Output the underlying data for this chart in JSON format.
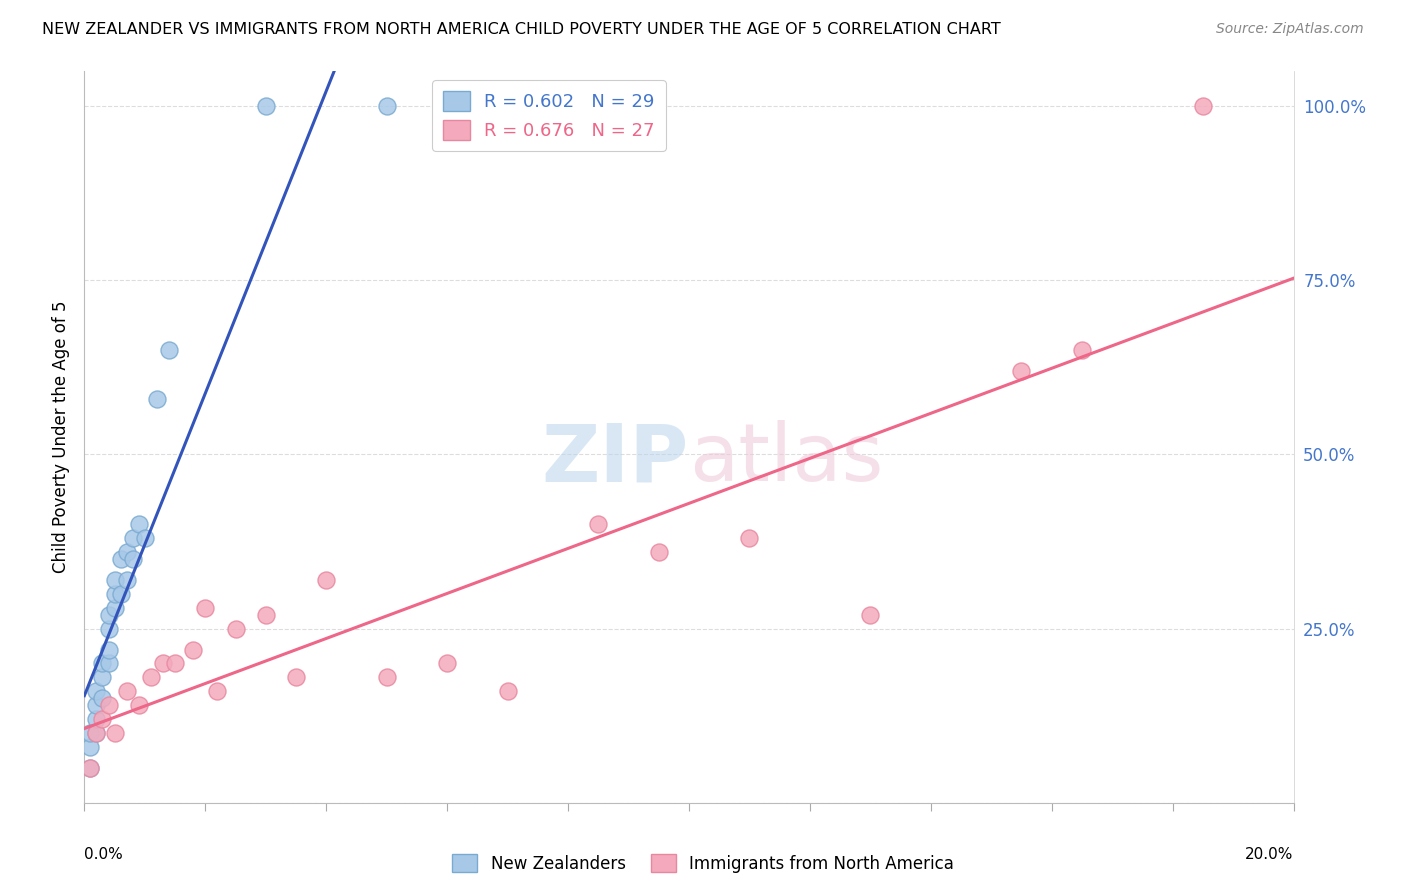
{
  "title": "NEW ZEALANDER VS IMMIGRANTS FROM NORTH AMERICA CHILD POVERTY UNDER THE AGE OF 5 CORRELATION CHART",
  "source": "Source: ZipAtlas.com",
  "ylabel": "Child Poverty Under the Age of 5",
  "R_blue": 0.602,
  "N_blue": 29,
  "R_pink": 0.676,
  "N_pink": 27,
  "legend_label_blue": "New Zealanders",
  "legend_label_pink": "Immigrants from North America",
  "blue_scatter_color": "#A8C8E8",
  "blue_scatter_edge": "#7AAAD0",
  "pink_scatter_color": "#F4AABC",
  "pink_scatter_edge": "#E888A0",
  "blue_line_color": "#3355BB",
  "pink_line_color": "#EE6688",
  "blue_text_color": "#4477CC",
  "pink_text_color": "#EE6688",
  "grid_color": "#DDDDDD",
  "background_color": "#FFFFFF",
  "blue_points_x": [
    0.001,
    0.001,
    0.001,
    0.002,
    0.002,
    0.002,
    0.002,
    0.003,
    0.003,
    0.003,
    0.004,
    0.004,
    0.004,
    0.004,
    0.005,
    0.005,
    0.005,
    0.006,
    0.006,
    0.007,
    0.007,
    0.008,
    0.008,
    0.009,
    0.01,
    0.012,
    0.014,
    0.03,
    0.05
  ],
  "blue_points_y": [
    0.05,
    0.08,
    0.1,
    0.1,
    0.12,
    0.14,
    0.16,
    0.15,
    0.18,
    0.2,
    0.2,
    0.22,
    0.25,
    0.27,
    0.28,
    0.3,
    0.32,
    0.3,
    0.35,
    0.32,
    0.36,
    0.35,
    0.38,
    0.4,
    0.38,
    0.58,
    0.65,
    1.0,
    1.0
  ],
  "pink_points_x": [
    0.001,
    0.002,
    0.003,
    0.004,
    0.005,
    0.007,
    0.009,
    0.011,
    0.013,
    0.015,
    0.018,
    0.02,
    0.022,
    0.025,
    0.03,
    0.035,
    0.04,
    0.05,
    0.06,
    0.07,
    0.085,
    0.095,
    0.11,
    0.13,
    0.155,
    0.165,
    0.185
  ],
  "pink_points_y": [
    0.05,
    0.1,
    0.12,
    0.14,
    0.1,
    0.16,
    0.14,
    0.18,
    0.2,
    0.2,
    0.22,
    0.28,
    0.16,
    0.25,
    0.27,
    0.18,
    0.32,
    0.18,
    0.2,
    0.16,
    0.4,
    0.36,
    0.38,
    0.27,
    0.62,
    0.65,
    1.0
  ],
  "xlim": [
    0,
    0.2
  ],
  "ylim": [
    0,
    1.05
  ],
  "xtick_positions": [
    0.0,
    0.02,
    0.04,
    0.06,
    0.08,
    0.1,
    0.12,
    0.14,
    0.16,
    0.18,
    0.2
  ],
  "ytick_positions": [
    0.0,
    0.25,
    0.5,
    0.75,
    1.0
  ],
  "ytick_labels": [
    "",
    "25.0%",
    "50.0%",
    "75.0%",
    "100.0%"
  ]
}
